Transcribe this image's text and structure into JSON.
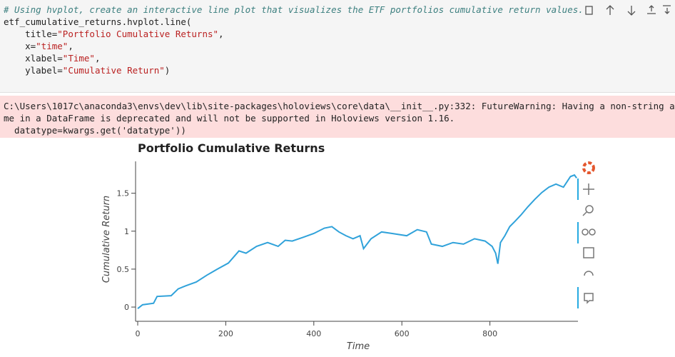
{
  "code": {
    "lines": [
      [
        "# Using hvplot, create an interactive line plot that visualizes the ETF portfolios cumulative return values."
      ],
      [
        "etf_cumulative_returns.hvplot.line("
      ],
      [
        "    title=",
        "\"Portfolio Cumulative Returns\"",
        ","
      ],
      [
        "    x=",
        "\"time\"",
        ","
      ],
      [
        "    xlabel=",
        "\"Time\"",
        ","
      ],
      [
        "    ylabel=",
        "\"Cumulative Return\"",
        ")"
      ]
    ]
  },
  "warning": {
    "lines": [
      "C:\\Users\\1017c\\anaconda3\\envs\\dev\\lib\\site-packages\\holoviews\\core\\data\\__init__.py:332: FutureWarning: Having a non-string as a col",
      "me in a DataFrame is deprecated and will not be supported in Holoviews version 1.16.",
      "  datatype=kwargs.get('datatype'))"
    ]
  },
  "chart_data": {
    "type": "line",
    "title": "Portfolio Cumulative Returns",
    "xlabel": "Time",
    "ylabel": "Cumulative Return",
    "x": [
      0,
      11,
      36,
      44,
      76,
      92,
      109,
      133,
      157,
      181,
      206,
      230,
      246,
      270,
      295,
      319,
      335,
      351,
      376,
      400,
      424,
      441,
      457,
      473,
      489,
      505,
      513,
      530,
      554,
      578,
      611,
      635,
      656,
      667,
      692,
      716,
      740,
      765,
      789,
      805,
      813,
      818,
      824,
      834,
      845,
      857,
      870,
      886,
      902,
      918,
      934,
      950,
      967,
      975,
      983,
      992,
      997
    ],
    "series": [
      {
        "name": "Cumulative Return",
        "color": "#30a2da",
        "values": [
          -0.02,
          0.03,
          0.05,
          0.14,
          0.15,
          0.24,
          0.28,
          0.33,
          0.42,
          0.5,
          0.58,
          0.74,
          0.71,
          0.8,
          0.85,
          0.8,
          0.88,
          0.87,
          0.92,
          0.97,
          1.04,
          1.06,
          0.99,
          0.94,
          0.9,
          0.94,
          0.77,
          0.9,
          0.99,
          0.97,
          0.94,
          1.02,
          0.99,
          0.83,
          0.8,
          0.85,
          0.83,
          0.9,
          0.87,
          0.8,
          0.71,
          0.57,
          0.85,
          0.94,
          1.06,
          1.13,
          1.21,
          1.32,
          1.42,
          1.51,
          1.58,
          1.62,
          1.58,
          1.65,
          1.72,
          1.74,
          1.7
        ]
      }
    ],
    "xlim": [
      0,
      1000
    ],
    "xticks": [
      0,
      200,
      400,
      600,
      800
    ],
    "ylim": [
      -0.15,
      1.92
    ],
    "yticks": [
      0,
      0.5,
      1,
      1.5
    ]
  }
}
